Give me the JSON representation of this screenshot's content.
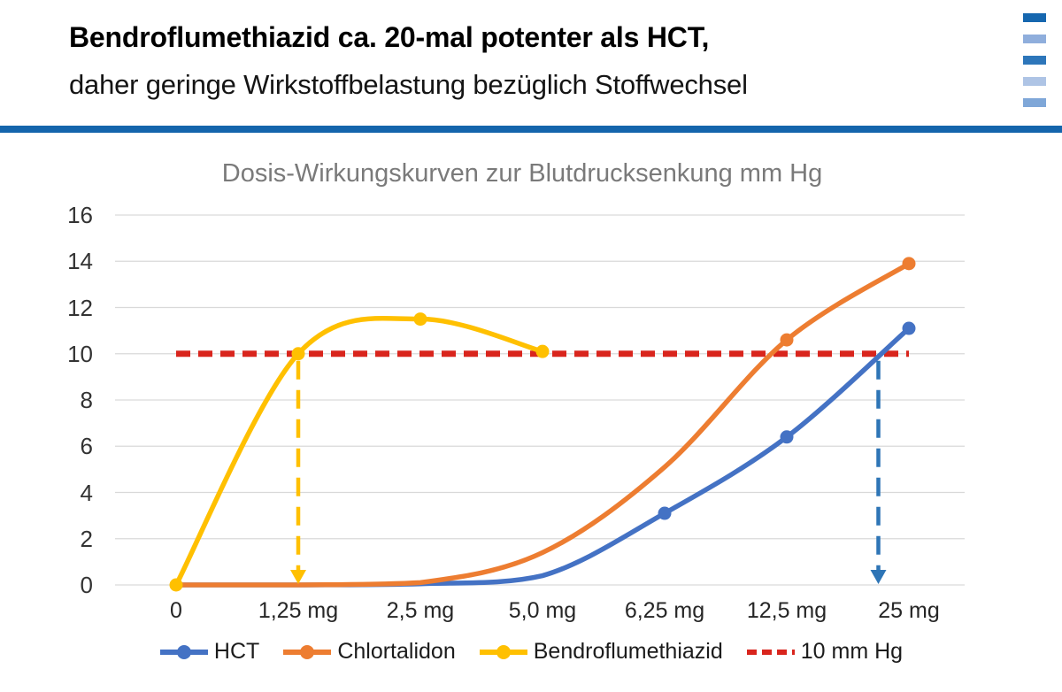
{
  "header": {
    "title": "Bendroflumethiazid ca. 20-mal potenter als HCT,",
    "subtitle": "daher geringe Wirkstoffbelastung bezüglich Stoffwechsel",
    "rule_color": "#1465AC",
    "deco_colors": [
      "#1667AF",
      "#8FAEDC",
      "#2D76BA",
      "#AEC4E5",
      "#7FA7D8"
    ]
  },
  "chart_data": {
    "type": "line",
    "title": "Dosis-Wirkungskurven zur Blutdrucksenkung mm Hg",
    "categories": [
      "0",
      "1,25 mg",
      "2,5 mg",
      "5,0 mg",
      "6,25 mg",
      "12,5 mg",
      "25 mg"
    ],
    "ylabel": "mm Hg",
    "ylim": [
      0,
      16
    ],
    "yticks": [
      0,
      2,
      4,
      6,
      8,
      10,
      12,
      14,
      16
    ],
    "grid": true,
    "grid_color": "#D9D9D9",
    "legend_position": "bottom",
    "series": [
      {
        "name": "HCT",
        "color": "#4472C4",
        "smooth": true,
        "values": [
          0,
          0,
          0.05,
          0.4,
          3.1,
          6.4,
          11.1
        ],
        "marker_indices": [
          4,
          5,
          6
        ]
      },
      {
        "name": "Chlortalidon",
        "color": "#ED7D31",
        "smooth": true,
        "values": [
          0,
          0,
          0.1,
          1.4,
          5.1,
          10.6,
          13.9
        ],
        "marker_indices": [
          5,
          6
        ]
      },
      {
        "name": "Bendroflumethiazid",
        "color": "#FFC000",
        "smooth": true,
        "values": [
          0,
          10,
          11.5,
          10.1,
          null,
          null,
          null
        ],
        "marker_indices": [
          0,
          1,
          2,
          3
        ]
      }
    ],
    "threshold": {
      "label": "10 mm Hg",
      "value": 10,
      "color": "#D9251D",
      "style": "dashed"
    },
    "annotations": [
      {
        "type": "arrow-down",
        "category_pos": 1.0,
        "from_value": 10,
        "to_value": 0,
        "color": "#FFC000"
      },
      {
        "type": "arrow-down",
        "category_pos": 5.75,
        "from_value": 10,
        "to_value": 0,
        "color": "#2E75B6"
      }
    ]
  }
}
